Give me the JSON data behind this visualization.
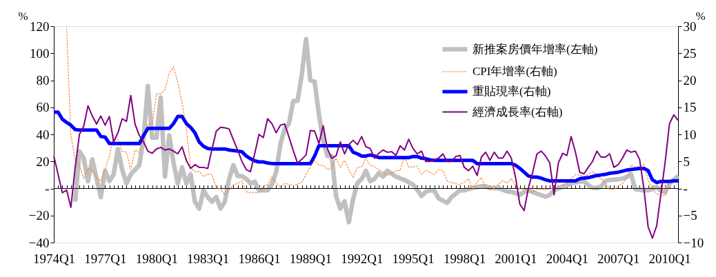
{
  "chart_data": {
    "type": "line",
    "ylabel": "%",
    "y2label": "%",
    "categories": [
      "1974Q1",
      null,
      null,
      null,
      null,
      null,
      null,
      null,
      null,
      null,
      null,
      null,
      "1977Q1",
      null,
      null,
      null,
      null,
      null,
      null,
      null,
      null,
      null,
      null,
      null,
      "1980Q1",
      null,
      null,
      null,
      null,
      null,
      null,
      null,
      null,
      null,
      null,
      null,
      "1983Q1",
      null,
      null,
      null,
      null,
      null,
      null,
      null,
      null,
      null,
      null,
      null,
      "1986Q1",
      null,
      null,
      null,
      null,
      null,
      null,
      null,
      null,
      null,
      null,
      null,
      "1989Q1",
      null,
      null,
      null,
      null,
      null,
      null,
      null,
      null,
      null,
      null,
      null,
      "1992Q1",
      null,
      null,
      null,
      null,
      null,
      null,
      null,
      null,
      null,
      null,
      null,
      "1995Q1",
      null,
      null,
      null,
      null,
      null,
      null,
      null,
      null,
      null,
      null,
      null,
      "1998Q1",
      null,
      null,
      null,
      null,
      null,
      null,
      null,
      null,
      null,
      null,
      null,
      "2001Q1",
      null,
      null,
      null,
      null,
      null,
      null,
      null,
      null,
      null,
      null,
      null,
      "2004Q1",
      null,
      null,
      null,
      null,
      null,
      null,
      null,
      null,
      null,
      null,
      null,
      "2007Q1",
      null,
      null,
      null,
      null,
      null,
      null,
      null,
      null,
      null,
      null,
      null,
      "2010Q1",
      null,
      null
    ],
    "ylim": [
      -40,
      120
    ],
    "yticks": [
      -40,
      -20,
      {
        "value": 0,
        "label": "-"
      },
      20,
      40,
      60,
      80,
      100,
      120
    ],
    "y2lim": [
      -10,
      30
    ],
    "y2ticks": [
      -10,
      -5,
      {
        "value": 0,
        "label": "-"
      },
      5,
      10,
      15,
      20,
      25,
      30
    ],
    "grid": false,
    "ref_lines": [
      {
        "axis": "y",
        "value": 0,
        "color": "#000000"
      }
    ],
    "legend": "top right",
    "marker": "none",
    "series": [
      {
        "name": "新推案房價年增率(左軸)",
        "color": "#c0c0c0",
        "axis": "y",
        "line_style": "solid",
        "values": [
          null,
          null,
          null,
          null,
          null,
          -9.8,
          27.5,
          22.4,
          5.4,
          21.5,
          7.1,
          -6.4,
          13.1,
          5.4,
          10.5,
          29.2,
          13.9,
          3.7,
          10.5,
          13.9,
          17.3,
          37.6,
          75.8,
          37.6,
          37.6,
          67.3,
          8.8,
          39.3,
          19.0,
          3.7,
          15.6,
          3.7,
          10.5,
          -9.8,
          -14.9,
          -1.4,
          -6.4,
          -9.8,
          -6.4,
          -14.9,
          -9.8,
          7.1,
          17.3,
          9.2,
          9.2,
          7.1,
          3.7,
          5.0,
          -1.4,
          -1.4,
          -1.4,
          3.0,
          12.0,
          33.0,
          44.0,
          48.0,
          64.7,
          64.7,
          84.2,
          110.5,
          80.0,
          79.0,
          55.0,
          35.0,
          24.0,
          24.0,
          -5.6,
          -14.9,
          -9.5,
          -25.0,
          -8.0,
          4.0,
          7.0,
          13.1,
          5.4,
          7.1,
          11.4,
          8.8,
          13.1,
          11.0,
          8.8,
          7.5,
          6.3,
          4.6,
          2.9,
          -1.0,
          -5.6,
          -2.5,
          -1.4,
          -1.7,
          -7.3,
          -9.0,
          -10.7,
          -6.4,
          -4.0,
          -1.4,
          -1.4,
          -0.5,
          0.5,
          1.0,
          1.7,
          1.7,
          0.3,
          0.3,
          0.3,
          -1.0,
          -2.2,
          -2.5,
          -3.5,
          -4.7,
          -2.5,
          -1.4,
          -2.5,
          -3.8,
          -5.0,
          -6.1,
          -4.7,
          -1.4,
          0.0,
          1.2,
          2.5,
          3.5,
          4.6,
          5.0,
          5.4,
          2.4,
          0.5,
          0.3,
          1.5,
          5.4,
          6.3,
          6.5,
          6.8,
          7.3,
          8.5,
          10.5,
          -0.5,
          -1.0,
          -1.4,
          -1.4,
          -0.5,
          1.2,
          -1.7,
          -2.7,
          3.7,
          6.5,
          9.2
        ]
      },
      {
        "name": "CPI年增率(右軸)",
        "color": "#ff7f27",
        "axis": "y2",
        "line_style": "dashed",
        "values": [
          null,
          null,
          null,
          29.7,
          9.8,
          5.2,
          4.3,
          1.8,
          3.7,
          3.3,
          2.0,
          1.4,
          3.5,
          6.0,
          9.8,
          9.0,
          6.9,
          6.7,
          3.5,
          7.1,
          6.7,
          9.4,
          11.9,
          11.9,
          17.5,
          17.5,
          18.3,
          21.3,
          22.5,
          19.6,
          15.8,
          11.1,
          3.9,
          3.1,
          3.1,
          2.2,
          2.6,
          2.6,
          0.1,
          -0.1,
          -1.2,
          -0.3,
          0.7,
          0.9,
          1.4,
          -0.6,
          -0.8,
          -0.8,
          -0.8,
          0.5,
          0.7,
          2.2,
          1.0,
          0.3,
          0.9,
          0.8,
          0.5,
          0.8,
          1.1,
          2.6,
          4.0,
          5.2,
          4.3,
          4.3,
          3.5,
          3.7,
          5.6,
          3.9,
          5.2,
          3.5,
          2.0,
          3.9,
          4.0,
          5.6,
          4.3,
          4.0,
          3.5,
          3.0,
          2.4,
          2.8,
          3.3,
          3.3,
          6.0,
          3.9,
          4.0,
          4.1,
          2.6,
          3.3,
          3.0,
          2.6,
          3.5,
          3.3,
          1.4,
          1.1,
          0.9,
          0.7,
          1.2,
          1.8,
          -0.3,
          1.2,
          2.0,
          0.1,
          0.5,
          -0.1,
          0.8,
          1.4,
          1.0,
          1.8,
          0.5,
          -0.1,
          -0.1,
          -0.5,
          -0.7,
          -0.1,
          -0.2,
          -0.3,
          -0.1,
          0.1,
          0.4,
          0.7,
          1.1,
          1.8,
          2.6,
          2.4,
          2.2,
          2.6,
          3.1,
          2.5,
          1.8,
          0.9,
          -0.1,
          -0.2,
          0.5,
          0.9,
          1.8,
          4.4,
          3.9,
          4.1,
          4.5,
          1.5,
          0.0,
          -1.0,
          -1.3,
          -1.3,
          0.9,
          null,
          null
        ]
      },
      {
        "name": "重貼現率(右軸)",
        "color": "#0000ff",
        "axis": "y2",
        "line_style": "solid",
        "values": [
          14.1,
          14.1,
          12.8,
          12.2,
          11.7,
          10.9,
          10.8,
          10.8,
          10.8,
          10.8,
          10.8,
          9.6,
          9.5,
          8.3,
          8.3,
          8.3,
          8.3,
          8.3,
          8.3,
          8.3,
          8.3,
          9.8,
          11.1,
          11.1,
          11.1,
          11.1,
          11.1,
          11.1,
          12.0,
          13.3,
          13.3,
          12.0,
          11.3,
          10.3,
          8.6,
          7.8,
          7.4,
          7.3,
          7.3,
          7.3,
          7.3,
          7.1,
          7.0,
          6.9,
          6.8,
          6.0,
          5.5,
          5.1,
          4.9,
          4.9,
          4.7,
          4.6,
          4.6,
          4.6,
          4.6,
          4.6,
          4.6,
          4.6,
          4.6,
          4.6,
          4.6,
          6.0,
          7.9,
          7.9,
          7.9,
          7.9,
          7.9,
          7.9,
          7.9,
          7.9,
          6.7,
          6.4,
          6.0,
          6.0,
          6.2,
          6.0,
          5.7,
          5.7,
          5.7,
          5.7,
          5.7,
          5.7,
          5.7,
          5.7,
          5.9,
          5.9,
          5.6,
          5.5,
          5.3,
          5.2,
          5.2,
          5.2,
          5.2,
          5.2,
          5.2,
          5.2,
          5.2,
          5.2,
          5.2,
          4.6,
          4.6,
          4.6,
          4.6,
          4.6,
          4.6,
          4.6,
          4.6,
          4.6,
          4.3,
          3.7,
          3.0,
          2.3,
          2.1,
          2.1,
          1.9,
          1.6,
          1.4,
          1.4,
          1.4,
          1.4,
          1.4,
          1.4,
          1.4,
          1.8,
          1.9,
          2.0,
          2.2,
          2.4,
          2.5,
          2.6,
          2.8,
          2.9,
          3.0,
          3.2,
          3.4,
          3.5,
          3.6,
          3.7,
          3.7,
          3.3,
          1.6,
          1.1,
          1.3,
          1.3,
          1.3,
          1.4,
          1.4
        ]
      },
      {
        "name": "經濟成長率(右軸)",
        "color": "#800080",
        "axis": "y2",
        "line_style": "solid",
        "values": [
          6.0,
          2.6,
          -0.8,
          -0.3,
          -3.5,
          3.9,
          10.0,
          11.5,
          15.3,
          13.4,
          11.9,
          13.4,
          11.7,
          13.3,
          8.6,
          10.3,
          12.9,
          12.4,
          17.2,
          11.9,
          9.8,
          8.6,
          6.9,
          6.5,
          7.3,
          7.6,
          7.1,
          7.3,
          6.9,
          6.4,
          7.7,
          5.2,
          3.7,
          4.4,
          3.9,
          3.9,
          3.7,
          7.3,
          10.6,
          11.3,
          11.2,
          11.0,
          9.0,
          7.1,
          5.0,
          3.5,
          3.1,
          6.5,
          10.0,
          9.4,
          12.9,
          12.0,
          10.3,
          11.7,
          11.9,
          9.5,
          7.0,
          4.7,
          5.4,
          6.2,
          10.7,
          10.6,
          8.3,
          11.6,
          7.3,
          5.6,
          6.0,
          8.6,
          6.4,
          8.1,
          8.9,
          8.1,
          9.6,
          7.7,
          7.4,
          5.6,
          6.5,
          7.1,
          6.7,
          6.8,
          6.1,
          7.9,
          7.1,
          9.1,
          7.4,
          6.4,
          6.9,
          5.0,
          5.0,
          5.3,
          5.6,
          6.4,
          5.0,
          5.0,
          5.9,
          6.1,
          3.9,
          3.3,
          4.1,
          2.4,
          5.8,
          6.7,
          5.2,
          6.7,
          5.6,
          5.6,
          6.9,
          5.6,
          2.0,
          -2.9,
          -4.1,
          0.1,
          3.0,
          6.4,
          6.9,
          6.0,
          4.7,
          -1.2,
          4.7,
          6.5,
          6.1,
          9.6,
          6.7,
          3.0,
          2.7,
          3.9,
          5.0,
          6.9,
          5.8,
          5.8,
          6.4,
          3.9,
          4.4,
          5.6,
          7.1,
          6.7,
          6.9,
          5.4,
          0.0,
          -7.1,
          -9.2,
          -6.9,
          -1.0,
          5.0,
          12.0,
          13.6,
          12.6
        ]
      }
    ]
  }
}
